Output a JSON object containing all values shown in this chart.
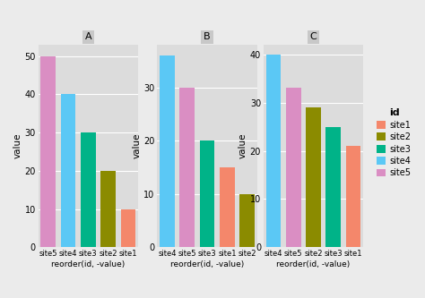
{
  "panels": [
    {
      "title": "A",
      "bars": [
        {
          "site": "site5",
          "value": 50,
          "color": "#DA8EC3"
        },
        {
          "site": "site4",
          "value": 40,
          "color": "#5BC8F5"
        },
        {
          "site": "site3",
          "value": 30,
          "color": "#00B388"
        },
        {
          "site": "site2",
          "value": 20,
          "color": "#8B8B00"
        },
        {
          "site": "site1",
          "value": 10,
          "color": "#F4876B"
        }
      ],
      "ylim": [
        0,
        53
      ],
      "yticks": [
        0,
        10,
        20,
        30,
        40,
        50
      ]
    },
    {
      "title": "B",
      "bars": [
        {
          "site": "site4",
          "value": 36,
          "color": "#5BC8F5"
        },
        {
          "site": "site5",
          "value": 30,
          "color": "#DA8EC3"
        },
        {
          "site": "site3",
          "value": 20,
          "color": "#00B388"
        },
        {
          "site": "site1",
          "value": 15,
          "color": "#F4876B"
        },
        {
          "site": "site2",
          "value": 10,
          "color": "#8B8B00"
        }
      ],
      "ylim": [
        0,
        38
      ],
      "yticks": [
        0,
        10,
        20,
        30
      ]
    },
    {
      "title": "C",
      "bars": [
        {
          "site": "site4",
          "value": 40,
          "color": "#5BC8F5"
        },
        {
          "site": "site5",
          "value": 33,
          "color": "#DA8EC3"
        },
        {
          "site": "site2",
          "value": 29,
          "color": "#8B8B00"
        },
        {
          "site": "site3",
          "value": 25,
          "color": "#00B388"
        },
        {
          "site": "site1",
          "value": 21,
          "color": "#F4876B"
        }
      ],
      "ylim": [
        0,
        42
      ],
      "yticks": [
        0,
        10,
        20,
        30,
        40
      ]
    }
  ],
  "legend_items": [
    {
      "label": "site1",
      "color": "#F4876B"
    },
    {
      "label": "site2",
      "color": "#8B8B00"
    },
    {
      "label": "site3",
      "color": "#00B388"
    },
    {
      "label": "site4",
      "color": "#5BC8F5"
    },
    {
      "label": "site5",
      "color": "#DA8EC3"
    }
  ],
  "xlabel": "reorder(id, -value)",
  "ylabel": "value",
  "legend_title": "id",
  "bg_color": "#EBEBEB",
  "panel_bg": "#DCDCDC",
  "grid_color": "white",
  "title_bg": "#C8C8C8"
}
